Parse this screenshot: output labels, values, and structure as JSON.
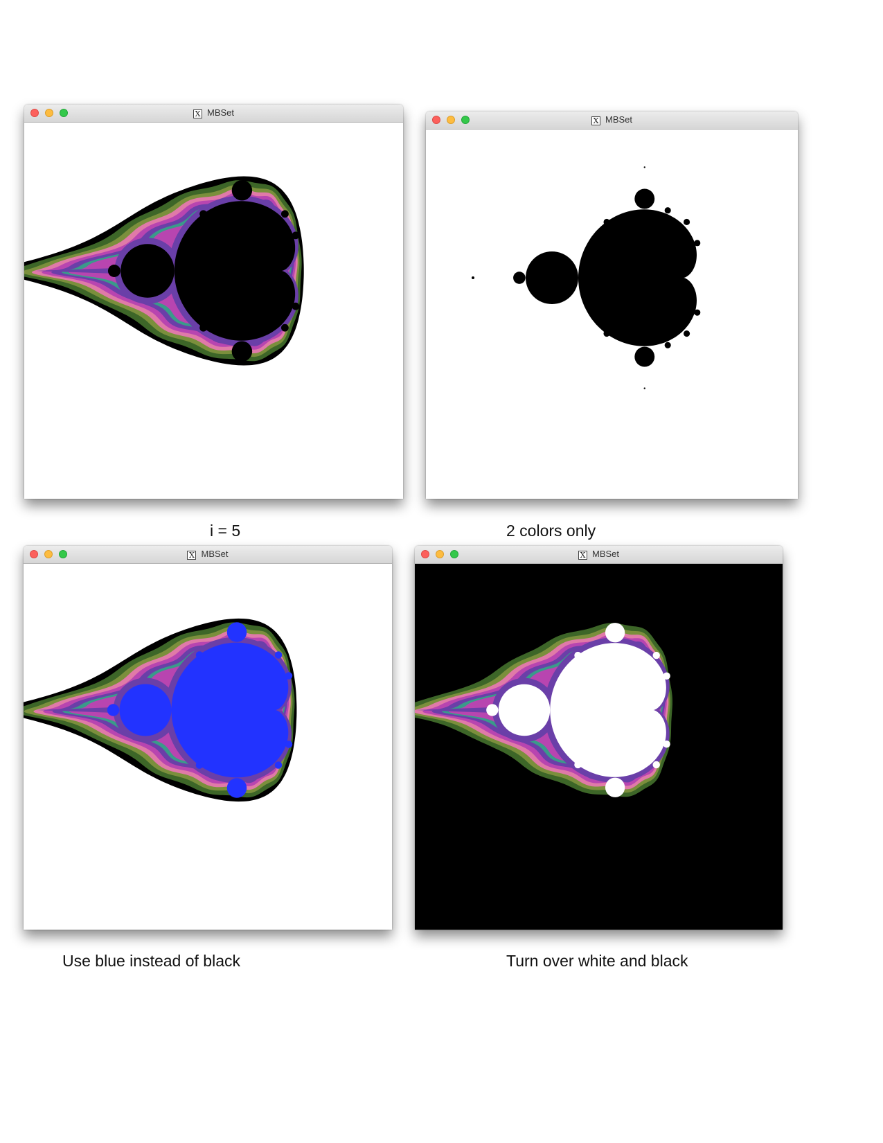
{
  "windows": [
    {
      "title": "MBSet",
      "variant": "colored-black-interior"
    },
    {
      "title": "MBSet",
      "variant": "two-color"
    },
    {
      "title": "MBSet",
      "variant": "colored-blue-interior"
    },
    {
      "title": "MBSet",
      "variant": "colored-inverted"
    }
  ],
  "captions": {
    "i5": "i = 5",
    "two_colors": "2 colors only",
    "blue": "Use blue instead of black",
    "invert": "Turn over white and black"
  },
  "colors": {
    "window_bg": "#ffffff",
    "interior_black": "#000000",
    "interior_blue": "#2233ff",
    "inverted_bg": "#000000",
    "inverted_interior": "#ffffff",
    "band_dark_green": "#3d6628",
    "band_olive": "#7b8f3c",
    "band_magenta": "#b845b0",
    "band_pink": "#e07aa8",
    "band_purple": "#6a3fa8",
    "band_teal": "#3a9a8a"
  }
}
